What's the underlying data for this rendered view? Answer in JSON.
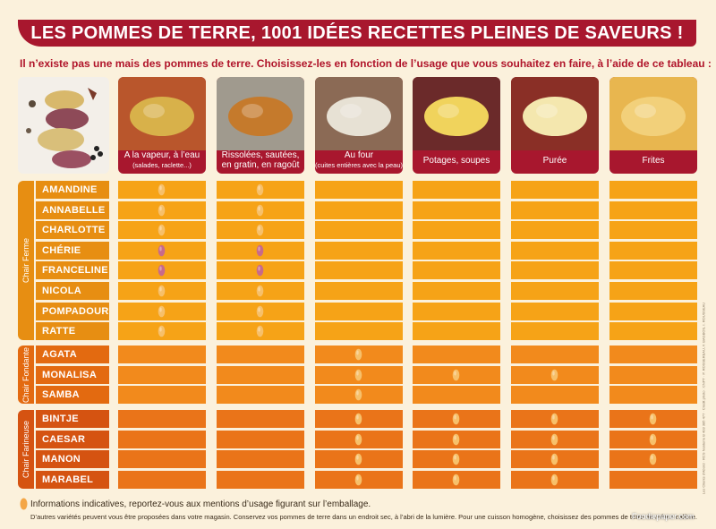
{
  "title": "LES POMMES DE TERRE, 1001 IDÉES RECETTES PLEINES DE SAVEURS !",
  "subtitle": "Il n’existe pas une mais des pommes de terre. Choisissez-les en fonction de l’usage que vous souhaitez en faire, à l’aide de ce tableau :",
  "columns": [
    {
      "label": "A la vapeur, à l’eau",
      "sub": "(salades, raclette...)"
    },
    {
      "label": "Rissolées, sautées, en gratin, en ragoût",
      "sub": ""
    },
    {
      "label": "Au four",
      "sub": "(cuites entières avec la peau)"
    },
    {
      "label": "Potages, soupes",
      "sub": ""
    },
    {
      "label": "Purée",
      "sub": ""
    },
    {
      "label": "Frites",
      "sub": ""
    }
  ],
  "groups": [
    {
      "name": "Chair Ferme",
      "varieties": [
        {
          "name": "AMANDINE",
          "marks": [
            1,
            1,
            0,
            0,
            0,
            0
          ]
        },
        {
          "name": "ANNABELLE",
          "marks": [
            1,
            1,
            0,
            0,
            0,
            0
          ]
        },
        {
          "name": "CHARLOTTE",
          "marks": [
            1,
            1,
            0,
            0,
            0,
            0
          ]
        },
        {
          "name": "CHÉRIE",
          "marks": [
            2,
            2,
            0,
            0,
            0,
            0
          ]
        },
        {
          "name": "FRANCELINE",
          "marks": [
            2,
            2,
            0,
            0,
            0,
            0
          ]
        },
        {
          "name": "NICOLA",
          "marks": [
            1,
            1,
            0,
            0,
            0,
            0
          ]
        },
        {
          "name": "POMPADOUR",
          "marks": [
            1,
            1,
            0,
            0,
            0,
            0
          ]
        },
        {
          "name": "RATTE",
          "marks": [
            1,
            1,
            0,
            0,
            0,
            0
          ]
        }
      ]
    },
    {
      "name": "Chair Fondante",
      "varieties": [
        {
          "name": "AGATA",
          "marks": [
            0,
            0,
            1,
            0,
            0,
            0
          ]
        },
        {
          "name": "MONALISA",
          "marks": [
            0,
            0,
            1,
            1,
            1,
            0
          ]
        },
        {
          "name": "SAMBA",
          "marks": [
            0,
            0,
            1,
            0,
            0,
            0
          ]
        }
      ]
    },
    {
      "name": "Chair Farineuse",
      "varieties": [
        {
          "name": "BINTJE",
          "marks": [
            0,
            0,
            1,
            1,
            1,
            1
          ]
        },
        {
          "name": "CAESAR",
          "marks": [
            0,
            0,
            1,
            1,
            1,
            1
          ]
        },
        {
          "name": "MANON",
          "marks": [
            0,
            0,
            1,
            1,
            1,
            1
          ]
        },
        {
          "name": "MARABEL",
          "marks": [
            0,
            0,
            1,
            1,
            1,
            0
          ]
        }
      ]
    }
  ],
  "footer": {
    "note": "Informations indicatives, reportez-vous aux mentions d’usage figurant sur l’emballage.",
    "detail": "D’autres variétés peuvent vous être proposées dans votre magasin. Conservez vos pommes de terre dans un endroit sec, à l’abri de la lumière. Pour une cuisson homogène, choisissez des pommes de terre de même calibre."
  },
  "watermark": "Foodiepaper.com",
  "side_credit": "Les Clients d’Abord · RCS Nanterre B 403 385 477 · Crédit photo : CNPT · P. ROSSEREAU, F. BAGBOS, I. ROUSSEAU",
  "colors": {
    "header": "#a8172e",
    "ferme_label": "#e78e12",
    "ferme_cell": "#f6a317",
    "fondante_label": "#e36a10",
    "fondante_cell": "#f28a1c",
    "farineuse_label": "#d55311",
    "farineuse_cell": "#ea7419",
    "mark_yellow": "#f7c06a",
    "mark_pink": "#c86a8a"
  },
  "icons": {
    "mark": "potato-icon"
  }
}
